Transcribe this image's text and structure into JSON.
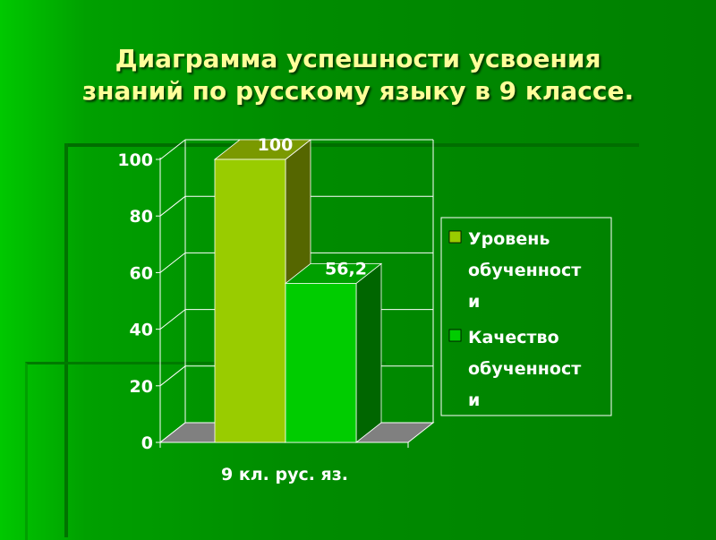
{
  "title": [
    "Диаграмма успешности усвоения",
    "знаний по русскому языку в 9 классе."
  ],
  "colors": {
    "background": "#008000",
    "title": "#ffff99",
    "series1": "#99cc00",
    "series2": "#00cc00",
    "floor": "#808080"
  },
  "chart_data": {
    "type": "bar",
    "style": "3d-clustered-column",
    "categories": [
      "9 кл. рус. яз."
    ],
    "series": [
      {
        "name": "Уровень обученности",
        "legend_lines": [
          "Уровень",
          "обученност",
          "и"
        ],
        "values": [
          100
        ],
        "data_labels": [
          "100"
        ],
        "color": "#99cc00"
      },
      {
        "name": "Качество обученности",
        "legend_lines": [
          "Качество",
          "обученност",
          "и"
        ],
        "values": [
          56.2
        ],
        "data_labels": [
          "56,2"
        ],
        "color": "#00cc00"
      }
    ],
    "y_ticks": [
      "0",
      "20",
      "40",
      "60",
      "80",
      "100"
    ],
    "ylim": [
      0,
      100
    ],
    "grid": true,
    "legend_position": "right"
  }
}
